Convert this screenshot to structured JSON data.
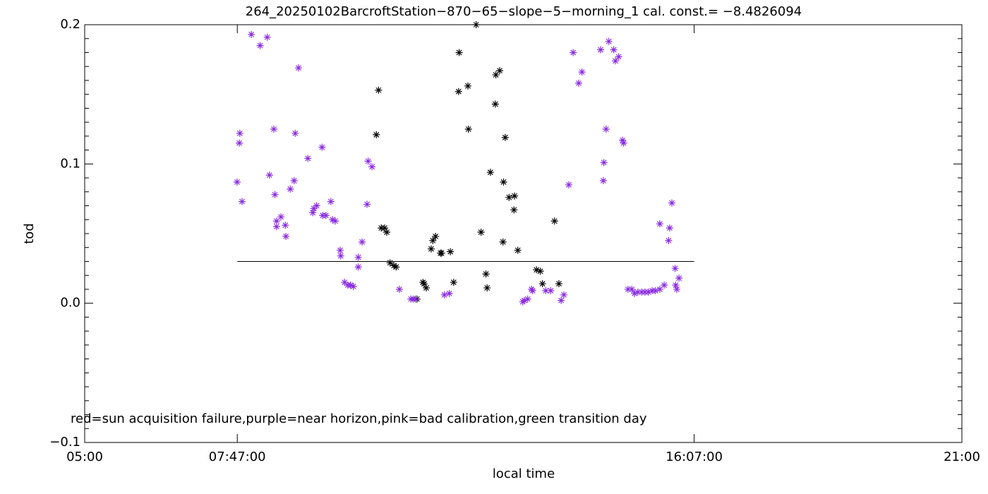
{
  "chart_data": {
    "type": "scatter",
    "title": "264_20250102BarcroftStation−870−65−slope−5−morning_1 cal. const.= −8.4826094",
    "xlabel": "local time",
    "ylabel": "tod",
    "annotation": "red=sun acquisition failure,purple=near horizon,pink=bad calibration,green transition day",
    "xlim": [
      5,
      21
    ],
    "ylim": [
      -0.1,
      0.2
    ],
    "xticks": [
      {
        "value": 5,
        "label": "05:00"
      },
      {
        "value": 7.7833,
        "label": "07:47:00"
      },
      {
        "value": 16.1167,
        "label": "16:07:00"
      },
      {
        "value": 21,
        "label": "21:00"
      }
    ],
    "yticks": [
      {
        "value": -0.1,
        "label": "−0.1"
      },
      {
        "value": 0,
        "label": "0.0"
      },
      0.1,
      0.2
    ],
    "yminorticks": [
      -0.09,
      -0.08,
      -0.07,
      -0.06,
      -0.05,
      -0.04,
      -0.03,
      -0.02,
      -0.01,
      0.01,
      0.02,
      0.03,
      0.04,
      0.05,
      0.06,
      0.07,
      0.08,
      0.09,
      0.11,
      0.12,
      0.13,
      0.14,
      0.15,
      0.16,
      0.17,
      0.18,
      0.19
    ],
    "threshold": {
      "x": [
        7.7833,
        16.1167
      ],
      "y": 0.03,
      "color": "#000000"
    },
    "series": [
      {
        "color": "#000000",
        "x": [
          10.32,
          10.36,
          10.41,
          10.47,
          10.51,
          10.57,
          10.64,
          10.68,
          11.17,
          11.19,
          11.23,
          11.06,
          11.32,
          11.35,
          11.4,
          11.49,
          11.51,
          11.67,
          11.73,
          11.82,
          11.83,
          11.99,
          12.0,
          12.14,
          12.23,
          12.32,
          12.34,
          12.4,
          12.49,
          12.5,
          12.57,
          12.63,
          12.64,
          12.67,
          12.74,
          12.84,
          12.83,
          12.9,
          13.24,
          13.31,
          13.35,
          13.57,
          13.65
        ],
        "values": [
          0.121,
          0.153,
          0.054,
          0.054,
          0.051,
          0.029,
          0.027,
          0.026,
          0.015,
          0.014,
          0.011,
          0.003,
          0.039,
          0.045,
          0.048,
          0.036,
          0.036,
          0.037,
          0.015,
          0.152,
          0.18,
          0.156,
          0.125,
          0.2,
          0.051,
          0.021,
          0.011,
          0.094,
          0.143,
          0.164,
          0.167,
          0.044,
          0.087,
          0.119,
          0.076,
          0.077,
          0.067,
          0.038,
          0.024,
          0.023,
          0.014,
          0.059,
          0.014
        ]
      },
      {
        "color": "#8a2be2",
        "x": [
          7.78,
          7.82,
          7.83,
          7.87,
          8.04,
          8.2,
          8.33,
          8.37,
          8.45,
          8.47,
          8.5,
          8.5,
          8.58,
          8.66,
          8.67,
          8.75,
          8.82,
          8.84,
          8.9,
          9.07,
          9.16,
          9.18,
          9.23,
          9.33,
          9.34,
          9.4,
          9.49,
          9.52,
          9.57,
          9.66,
          9.67,
          9.74,
          9.8,
          9.85,
          9.9,
          9.99,
          9.99,
          10.06,
          10.15,
          10.17,
          10.24,
          10.74,
          10.95,
          10.99,
          11.03,
          11.56,
          11.65,
          12.99,
          13.02,
          13.08,
          13.15,
          13.17,
          13.41,
          13.5,
          13.69,
          13.74,
          13.83,
          13.91,
          14.01,
          14.07,
          14.41,
          14.46,
          14.47,
          14.51,
          14.56,
          14.65,
          14.68,
          14.74,
          14.81,
          14.83,
          14.91,
          14.98,
          15.03,
          15.09,
          15.16,
          15.22,
          15.28,
          15.35,
          15.41,
          15.49,
          15.57,
          15.65,
          15.67,
          15.71,
          15.49,
          15.77,
          15.78,
          15.8,
          15.84
        ],
        "values": [
          0.087,
          0.115,
          0.122,
          0.073,
          0.193,
          0.185,
          0.191,
          0.092,
          0.125,
          0.078,
          0.059,
          0.055,
          0.062,
          0.056,
          0.048,
          0.082,
          0.088,
          0.122,
          0.169,
          0.104,
          0.065,
          0.068,
          0.07,
          0.112,
          0.063,
          0.063,
          0.073,
          0.06,
          0.059,
          0.038,
          0.034,
          0.015,
          0.013,
          0.013,
          0.012,
          0.033,
          0.026,
          0.044,
          0.071,
          0.102,
          0.098,
          0.01,
          0.003,
          0.003,
          0.003,
          0.006,
          0.007,
          0.001,
          0.002,
          0.003,
          0.01,
          0.009,
          0.009,
          0.009,
          0.002,
          0.006,
          0.085,
          0.18,
          0.158,
          0.166,
          0.182,
          0.088,
          0.101,
          0.125,
          0.188,
          0.182,
          0.174,
          0.177,
          0.117,
          0.115,
          0.01,
          0.01,
          0.007,
          0.008,
          0.008,
          0.008,
          0.008,
          0.009,
          0.009,
          0.01,
          0.013,
          0.045,
          0.054,
          0.072,
          0.057,
          0.025,
          0.013,
          0.01,
          0.018
        ]
      }
    ]
  }
}
